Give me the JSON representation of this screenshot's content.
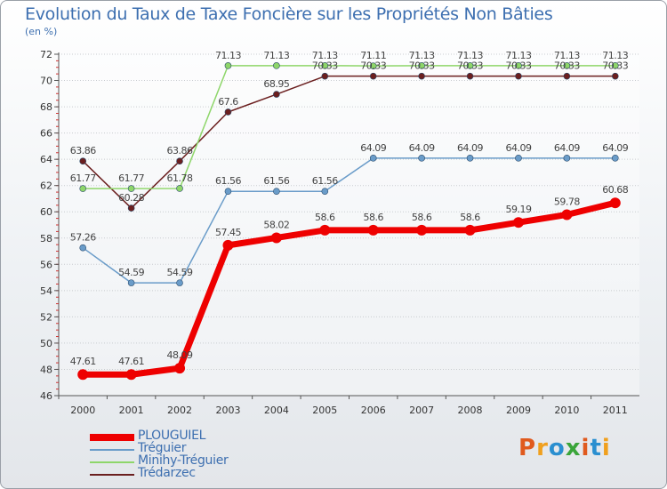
{
  "title": "Evolution du Taux de Taxe Foncière sur les Propriétés Non Bâties",
  "unit_label": "(en %)",
  "logo": {
    "text": "Proxiti",
    "colors": [
      "#e05a1e",
      "#f0a01e",
      "#2a8fd0",
      "#3aa53a",
      "#e05a1e",
      "#2a8fd0",
      "#f0a01e"
    ]
  },
  "chart_data": {
    "type": "line",
    "categories": [
      "2000",
      "2001",
      "2002",
      "2003",
      "2004",
      "2005",
      "2006",
      "2007",
      "2008",
      "2009",
      "2010",
      "2011"
    ],
    "ylim": [
      46,
      72
    ],
    "yticks": [
      46,
      48,
      50,
      52,
      54,
      56,
      58,
      60,
      62,
      64,
      66,
      68,
      70,
      72
    ],
    "grid": true,
    "series": [
      {
        "name": "Trédarzec",
        "color": "#6b1f1f",
        "values": [
          63.86,
          60.28,
          63.86,
          67.6,
          68.95,
          70.33,
          70.33,
          70.33,
          70.33,
          70.33,
          70.33,
          70.33
        ],
        "labels": [
          "63.86",
          "60.28",
          "63.86",
          "67.6",
          "68.95",
          "70.33",
          "70.33",
          "70.33",
          "70.33",
          "70.33",
          "70.33",
          "70.33"
        ]
      },
      {
        "name": "Minihy-Tréguier",
        "color": "#8ed66a",
        "values": [
          61.77,
          61.77,
          61.78,
          71.13,
          71.13,
          71.13,
          71.11,
          71.13,
          71.13,
          71.13,
          71.13,
          71.13
        ],
        "labels": [
          "61.77",
          "61.77",
          "61.78",
          "71.13",
          "71.13",
          "71.13",
          "71.11",
          "71.13",
          "71.13",
          "71.13",
          "71.13",
          "71.13"
        ]
      },
      {
        "name": "Tréguier",
        "color": "#6a9cc9",
        "values": [
          57.26,
          54.59,
          54.59,
          61.56,
          61.56,
          61.56,
          64.09,
          64.09,
          64.09,
          64.09,
          64.09,
          64.09
        ],
        "labels": [
          "57.26",
          "54.59",
          "54.59",
          "61.56",
          "61.56",
          "61.56",
          "64.09",
          "64.09",
          "64.09",
          "64.09",
          "64.09",
          "64.09"
        ]
      },
      {
        "name": "PLOUGUIEL",
        "color": "#ee0000",
        "values": [
          47.61,
          47.61,
          48.09,
          57.45,
          58.02,
          58.6,
          58.6,
          58.6,
          58.6,
          59.19,
          59.78,
          60.68
        ],
        "labels": [
          "47.61",
          "47.61",
          "48.09",
          "57.45",
          "58.02",
          "58.6",
          "58.6",
          "58.6",
          "58.6",
          "59.19",
          "59.78",
          "60.68"
        ]
      }
    ],
    "legend": [
      "PLOUGUIEL",
      "Tréguier",
      "Minihy-Tréguier",
      "Trédarzec"
    ]
  }
}
